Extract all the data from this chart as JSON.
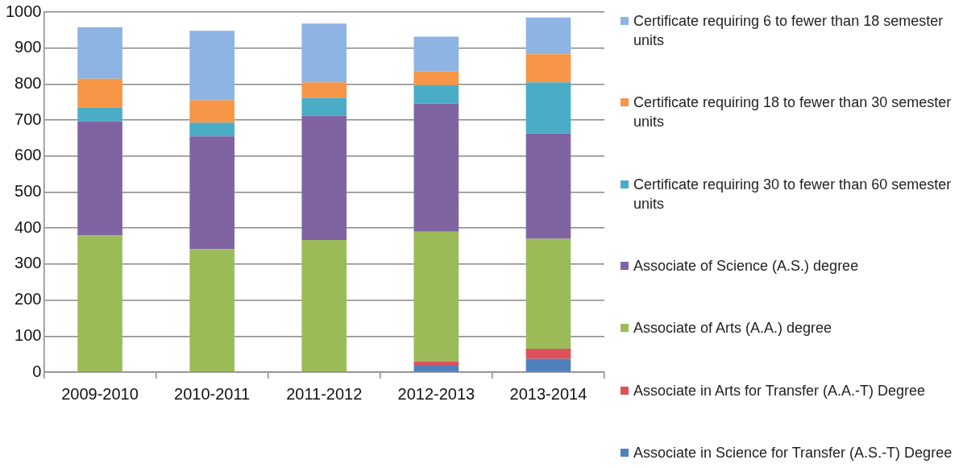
{
  "chart_data": {
    "type": "bar",
    "stacked": true,
    "categories": [
      "2009-2010",
      "2010-2011",
      "2011-2012",
      "2012-2013",
      "2013-2014"
    ],
    "series": [
      {
        "name": "Associate in Science for Transfer (A.S.-T) Degree",
        "color": "#4f81bd",
        "values": [
          0,
          0,
          0,
          20,
          37
        ]
      },
      {
        "name": "Associate in Arts for Transfer (A.A.-T) Degree",
        "color": "#e0505a",
        "values": [
          0,
          0,
          0,
          10,
          28
        ]
      },
      {
        "name": "Associate of Arts (A.A.) degree",
        "color": "#9bbb59",
        "values": [
          380,
          342,
          367,
          360,
          305
        ]
      },
      {
        "name": "Associate of Science (A.S.) degree",
        "color": "#8064a2",
        "values": [
          317,
          313,
          345,
          356,
          293
        ]
      },
      {
        "name": "Certificate requiring 30 to fewer than 60 semester units",
        "color": "#4bacc6",
        "values": [
          38,
          38,
          50,
          51,
          142
        ]
      },
      {
        "name": "Certificate requiring 18 to fewer than 30 semester units",
        "color": "#f79646",
        "values": [
          80,
          62,
          43,
          38,
          78
        ]
      },
      {
        "name": "Certificate requiring 6 to fewer than 18 semester units",
        "color": "#8db4e2",
        "values": [
          143,
          193,
          163,
          97,
          102
        ]
      }
    ],
    "ylim": [
      0,
      1000
    ],
    "yticks": [
      0,
      100,
      200,
      300,
      400,
      500,
      600,
      700,
      800,
      900,
      1000
    ],
    "grid": "y",
    "legend": "right"
  }
}
